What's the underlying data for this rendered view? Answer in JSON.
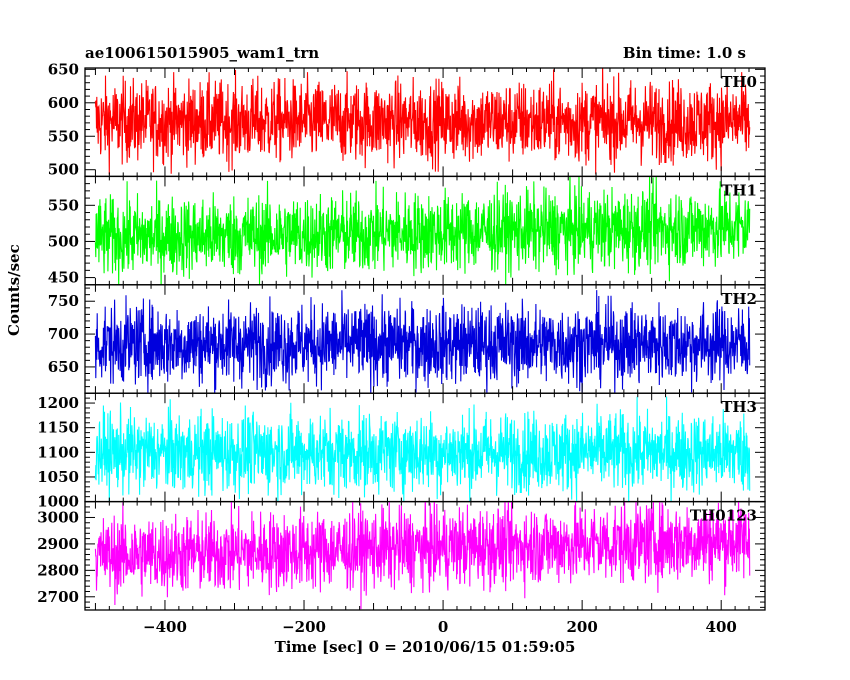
{
  "header": {
    "title": "ae100615015905_wam1_trn",
    "bin_time": "Bin time: 1.0 s"
  },
  "chart_data": {
    "type": "line",
    "xlabel": "Time [sec] 0 = 2010/06/15 01:59:05",
    "ylabel": "Counts/sec",
    "xlim": [
      -515,
      463
    ],
    "x_ticks": [
      -400,
      -200,
      0,
      200,
      400
    ],
    "x_range": [
      -500,
      441
    ],
    "panels": [
      {
        "name": "TH0",
        "color": "#ff0000",
        "ylim": [
          490,
          652
        ],
        "yticks": [
          500,
          550,
          600,
          650
        ],
        "mean": 572,
        "halfspread": 60
      },
      {
        "name": "TH1",
        "color": "#00ff00",
        "ylim": [
          440,
          590
        ],
        "yticks": [
          450,
          500,
          550
        ],
        "mean": 505,
        "halfspread": 55
      },
      {
        "name": "TH2",
        "color": "#0000dd",
        "ylim": [
          610,
          775
        ],
        "yticks": [
          650,
          700,
          750
        ],
        "mean": 685,
        "halfspread": 60
      },
      {
        "name": "TH3",
        "color": "#00ffff",
        "ylim": [
          1000,
          1220
        ],
        "yticks": [
          1000,
          1050,
          1100,
          1150,
          1200
        ],
        "mean": 1100,
        "halfspread": 80
      },
      {
        "name": "TH0123",
        "color": "#ff00ff",
        "ylim": [
          2650,
          3060
        ],
        "yticks": [
          2700,
          2800,
          2900,
          3000
        ],
        "mean": 2855,
        "halfspread": 150
      }
    ]
  }
}
